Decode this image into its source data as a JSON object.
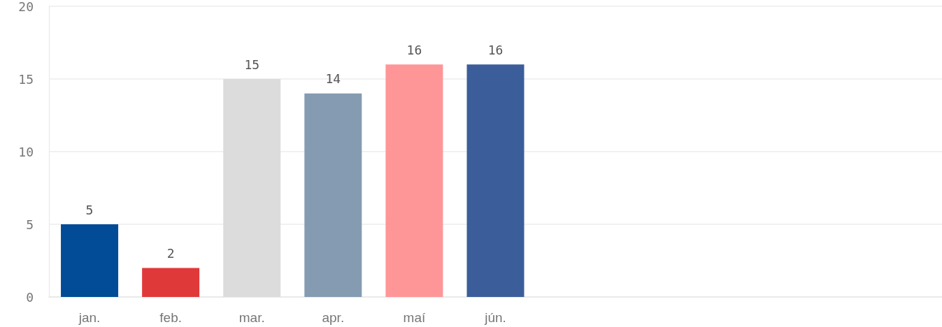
{
  "chart_data": {
    "type": "bar",
    "categories": [
      "jan.",
      "feb.",
      "mar.",
      "apr.",
      "maí",
      "jún.",
      null,
      null,
      null,
      null,
      null
    ],
    "values": [
      5,
      2,
      15,
      14,
      16,
      16,
      null,
      null,
      null,
      null,
      null
    ],
    "colors": [
      "#024b96",
      "#e0393a",
      "#dcdcdc",
      "#859bb1",
      "#fe9698",
      "#3b5e9a",
      null,
      null,
      null,
      null,
      null
    ],
    "ylim": [
      0,
      20
    ],
    "yticks": [
      0,
      5,
      10,
      15,
      20
    ],
    "grid": "y",
    "data_labels": true
  }
}
